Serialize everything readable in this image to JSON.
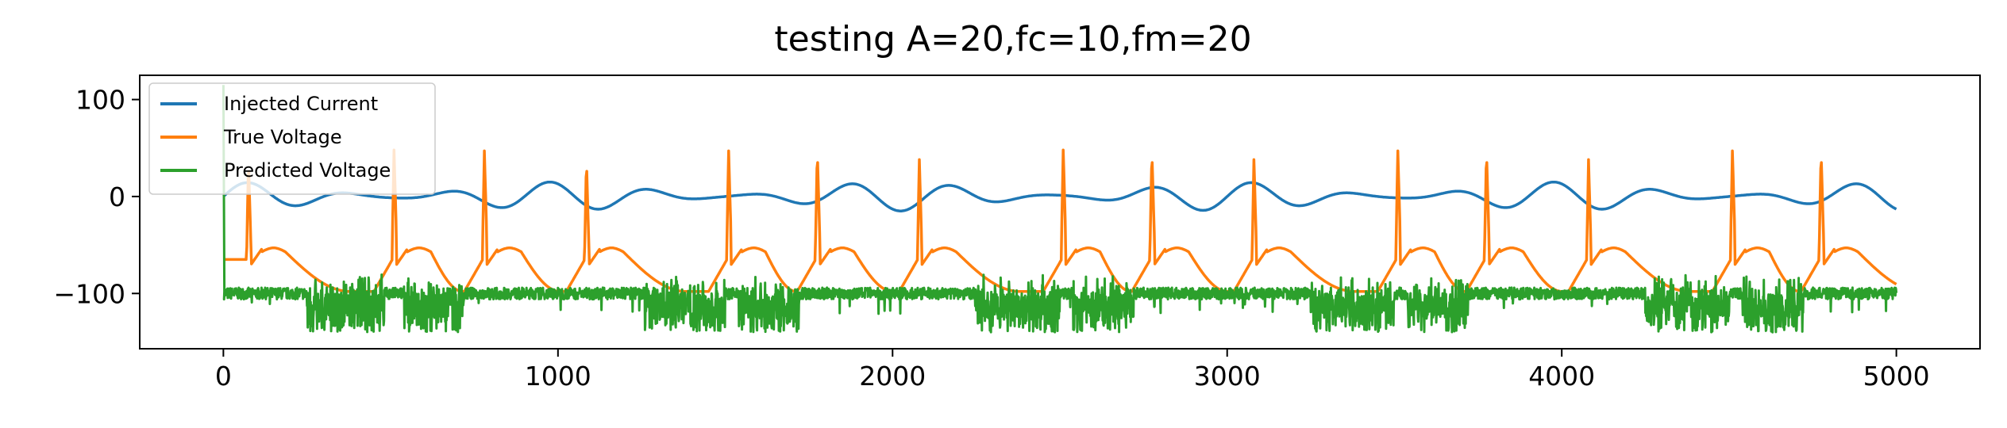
{
  "chart_data": {
    "type": "line",
    "title": "testing A=20,fc=10,fm=20",
    "xlabel": "",
    "ylabel": "",
    "xlim": [
      -250,
      5250
    ],
    "ylim": [
      -157,
      125
    ],
    "xticks": [
      0,
      1000,
      2000,
      3000,
      4000,
      5000
    ],
    "xtick_labels": [
      "0",
      "1000",
      "2000",
      "3000",
      "4000",
      "5000"
    ],
    "yticks": [
      100,
      0,
      -100
    ],
    "ytick_labels": [
      "100",
      "0",
      "−100"
    ],
    "grid": false,
    "legend_position": "upper-left",
    "series": [
      {
        "name": "Injected Current",
        "color": "#1f77b4",
        "kind": "modulated-sine",
        "amplitude": 15,
        "period": 100,
        "envelope_period": 200
      },
      {
        "name": "True Voltage",
        "color": "#ff7f0e",
        "kind": "spike-train",
        "rest": -65,
        "trough": -98,
        "plateau": -57,
        "spike_times": [
          75,
          510,
          780,
          1085,
          1510,
          1775,
          2080,
          2510,
          2775,
          3080,
          3510,
          3775,
          4080,
          4510,
          4775
        ],
        "spike_peaks": [
          38,
          48,
          47,
          38,
          47,
          47,
          38,
          48,
          47,
          38,
          47,
          47,
          38,
          47,
          47
        ]
      },
      {
        "name": "Predicted Voltage",
        "color": "#2ca02c",
        "kind": "noisy-bursts",
        "start_value": 115,
        "baseline": -100,
        "burst_floor": -145,
        "burst_ceiling": -78,
        "burst_intervals": [
          [
            250,
            480
          ],
          [
            540,
            720
          ],
          [
            1260,
            1500
          ],
          [
            1540,
            1720
          ],
          [
            2250,
            2500
          ],
          [
            2540,
            2720
          ],
          [
            3250,
            3500
          ],
          [
            3540,
            3720
          ],
          [
            4250,
            4500
          ],
          [
            4540,
            4720
          ]
        ],
        "end_value": -98
      }
    ]
  }
}
